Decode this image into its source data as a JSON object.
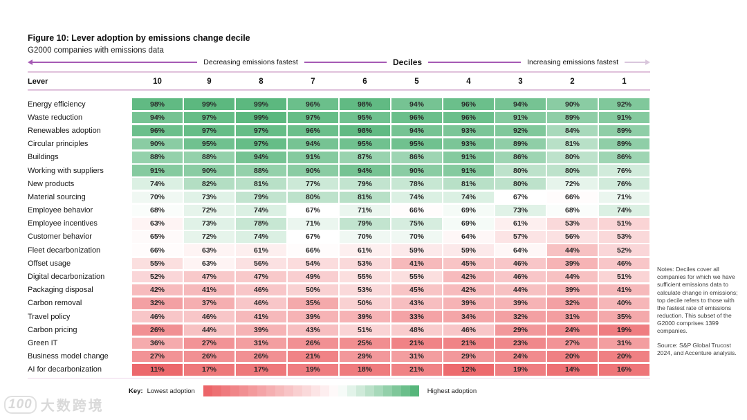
{
  "figure": {
    "title": "Figure 10: Lever adoption by emissions change decile",
    "subtitle": "G2000 companies with emissions data"
  },
  "axis": {
    "decreasing_label": "Decreasing emissions fastest",
    "center_label": "Deciles",
    "increasing_label": "Increasing emissions fastest"
  },
  "table": {
    "lever_header": "Lever"
  },
  "chart_data": {
    "type": "heatmap",
    "title": "Lever adoption by emissions change decile",
    "x_label": "Deciles",
    "x_categories": [
      "10",
      "9",
      "8",
      "7",
      "6",
      "5",
      "4",
      "3",
      "2",
      "1"
    ],
    "value_unit": "%",
    "rows": [
      {
        "lever": "Energy efficiency",
        "values": [
          98,
          99,
          99,
          96,
          98,
          94,
          96,
          94,
          90,
          92
        ]
      },
      {
        "lever": "Waste reduction",
        "values": [
          94,
          97,
          99,
          97,
          95,
          96,
          96,
          91,
          89,
          91
        ]
      },
      {
        "lever": "Renewables adoption",
        "values": [
          96,
          97,
          97,
          96,
          98,
          94,
          93,
          92,
          84,
          89
        ]
      },
      {
        "lever": "Circular principles",
        "values": [
          90,
          95,
          97,
          94,
          95,
          95,
          93,
          89,
          81,
          89
        ]
      },
      {
        "lever": "Buildings",
        "values": [
          88,
          88,
          94,
          91,
          87,
          86,
          91,
          86,
          80,
          86
        ]
      },
      {
        "lever": "Working with suppliers",
        "values": [
          91,
          90,
          88,
          90,
          94,
          90,
          91,
          80,
          80,
          76
        ]
      },
      {
        "lever": "New products",
        "values": [
          74,
          82,
          81,
          77,
          79,
          78,
          81,
          80,
          72,
          76
        ]
      },
      {
        "lever": "Material sourcing",
        "values": [
          70,
          73,
          79,
          80,
          81,
          74,
          74,
          67,
          66,
          71
        ]
      },
      {
        "lever": "Employee behavior",
        "values": [
          68,
          72,
          74,
          67,
          71,
          66,
          69,
          73,
          68,
          74
        ]
      },
      {
        "lever": "Employee incentives",
        "values": [
          63,
          73,
          78,
          71,
          79,
          75,
          69,
          61,
          53,
          51
        ]
      },
      {
        "lever": "Customer behavior",
        "values": [
          65,
          72,
          74,
          67,
          70,
          70,
          64,
          57,
          56,
          53
        ]
      },
      {
        "lever": "Fleet decarbonization",
        "values": [
          66,
          63,
          61,
          66,
          61,
          59,
          59,
          64,
          44,
          52
        ]
      },
      {
        "lever": "Offset usage",
        "values": [
          55,
          63,
          56,
          54,
          53,
          41,
          45,
          46,
          39,
          46
        ]
      },
      {
        "lever": "Digital decarbonization",
        "values": [
          52,
          47,
          47,
          49,
          55,
          55,
          42,
          46,
          44,
          51
        ]
      },
      {
        "lever": "Packaging disposal",
        "values": [
          42,
          41,
          46,
          50,
          53,
          45,
          42,
          44,
          39,
          41
        ]
      },
      {
        "lever": "Carbon removal",
        "values": [
          32,
          37,
          46,
          35,
          50,
          43,
          39,
          39,
          32,
          40
        ]
      },
      {
        "lever": "Travel policy",
        "values": [
          46,
          46,
          41,
          39,
          39,
          33,
          34,
          32,
          31,
          35
        ]
      },
      {
        "lever": "Carbon pricing",
        "values": [
          26,
          44,
          39,
          43,
          51,
          48,
          46,
          29,
          24,
          19
        ]
      },
      {
        "lever": "Green IT",
        "values": [
          36,
          27,
          31,
          26,
          25,
          21,
          21,
          23,
          27,
          31
        ]
      },
      {
        "lever": "Business model change",
        "values": [
          27,
          26,
          26,
          21,
          29,
          31,
          29,
          24,
          20,
          20
        ]
      },
      {
        "lever": "AI for decarbonization",
        "values": [
          11,
          17,
          17,
          19,
          18,
          21,
          12,
          19,
          14,
          16
        ]
      }
    ],
    "color_scale": {
      "min_color": "#ec6569",
      "mid_color": "#ffffff",
      "max_color": "#57b67b",
      "midpoint": 67,
      "min_value": 10,
      "max_value": 100
    },
    "legend_position": "bottom"
  },
  "key": {
    "label": "Key:",
    "low_label": "Lowest adoption",
    "high_label": "Highest adoption",
    "swatch_count": 24
  },
  "notes": {
    "text": "Notes: Deciles cover all companies for which we have sufficient emissions data to calculate change in emissions; top decile refers to those with the fastest rate of emissions reduction. This subset of the G2000 comprises 1399 companies.",
    "source": "Source: S&P Global Trucost 2024, and Accenture analysis."
  },
  "watermark": {
    "logo": "100",
    "text": "大数跨境"
  },
  "colors": {
    "accent_purple": "#a55ab4",
    "rule_pink": "#dfc0db",
    "green_max": "#57b67b",
    "red_min": "#ec6569"
  }
}
